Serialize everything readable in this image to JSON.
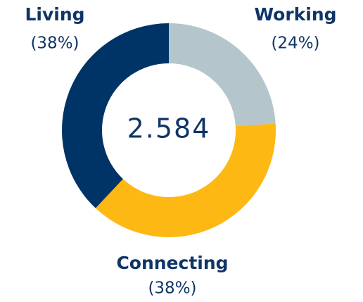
{
  "chart_data": {
    "type": "donut",
    "center_label": "2.584",
    "categories": [
      "Working",
      "Connecting",
      "Living"
    ],
    "values": [
      24,
      38,
      38
    ],
    "value_labels": [
      "(24%)",
      "(38%)",
      "(38%)"
    ],
    "colors": [
      "#b5c5cc",
      "#fdb813",
      "#003366"
    ]
  }
}
